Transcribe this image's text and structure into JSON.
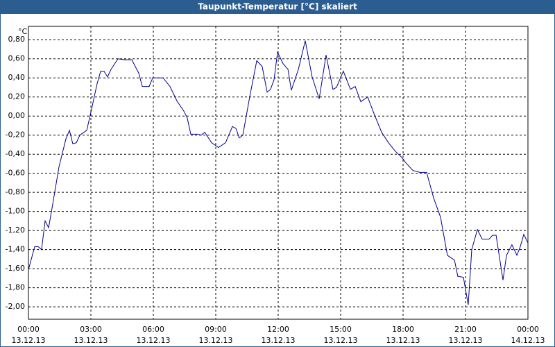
{
  "chart_data": {
    "type": "line",
    "title": "Taupunkt-Temperatur [°C] skaliert",
    "y_label": "°C",
    "xlim": [
      0,
      24
    ],
    "ylim": [
      -2.13,
      0.94
    ],
    "grid": true,
    "xticks": [
      {
        "value": 0,
        "label": [
          "00:00",
          "13.12.13"
        ]
      },
      {
        "value": 3,
        "label": [
          "03:00",
          "13.12.13"
        ]
      },
      {
        "value": 6,
        "label": [
          "06:00",
          "13.12.13"
        ]
      },
      {
        "value": 9,
        "label": [
          "09:00",
          "13.12.13"
        ]
      },
      {
        "value": 12,
        "label": [
          "12:00",
          "13.12.13"
        ]
      },
      {
        "value": 15,
        "label": [
          "15:00",
          "13.12.13"
        ]
      },
      {
        "value": 18,
        "label": [
          "18:00",
          "13.12.13"
        ]
      },
      {
        "value": 21,
        "label": [
          "21:00",
          "13.12.13"
        ]
      },
      {
        "value": 24,
        "label": [
          "00:00",
          "14.12.13"
        ]
      }
    ],
    "yticks": [
      {
        "value": 0.8,
        "label": "0,80"
      },
      {
        "value": 0.6,
        "label": "0,60"
      },
      {
        "value": 0.4,
        "label": "0,40"
      },
      {
        "value": 0.2,
        "label": "0,20"
      },
      {
        "value": 0,
        "label": "0,00"
      },
      {
        "value": -0.2,
        "label": "-0,20"
      },
      {
        "value": -0.4,
        "label": "-0,40"
      },
      {
        "value": -0.6,
        "label": "-0,60"
      },
      {
        "value": -0.8,
        "label": "-0,80"
      },
      {
        "value": -1.0,
        "label": "-1,00"
      },
      {
        "value": -1.2,
        "label": "-1,20"
      },
      {
        "value": -1.4,
        "label": "-1,40"
      },
      {
        "value": -1.6,
        "label": "-1,60"
      },
      {
        "value": -1.8,
        "label": "-1,80"
      },
      {
        "value": -2.0,
        "label": "-2,00"
      }
    ],
    "series": [
      {
        "color": "#00008b",
        "x": [
          0,
          0.3,
          0.47,
          0.63,
          0.8,
          0.97,
          1.13,
          1.47,
          1.8,
          1.97,
          2.13,
          2.3,
          2.47,
          2.8,
          2.97,
          3.3,
          3.47,
          3.63,
          3.8,
          3.97,
          4.3,
          4.63,
          4.97,
          5.13,
          5.3,
          5.47,
          5.8,
          5.97,
          6.47,
          6.8,
          7.13,
          7.47,
          7.63,
          7.8,
          8.13,
          8.3,
          8.47,
          8.8,
          9.13,
          9.47,
          9.8,
          9.97,
          10.13,
          10.3,
          10.63,
          10.97,
          11.23,
          11.47,
          11.63,
          11.8,
          11.97,
          12.23,
          12.47,
          12.63,
          12.97,
          13.3,
          13.63,
          13.97,
          14.3,
          14.63,
          14.8,
          15.13,
          15.47,
          15.7,
          15.97,
          16.3,
          16.63,
          16.97,
          17.3,
          17.63,
          17.97,
          18.13,
          18.47,
          18.8,
          19.13,
          19.47,
          19.8,
          20.13,
          20.47,
          20.63,
          20.9,
          21.13,
          21.3,
          21.57,
          21.8,
          22.13,
          22.3,
          22.47,
          22.8,
          22.97,
          23.23,
          23.47,
          23.63,
          23.8,
          24
        ],
        "values": [
          -1.61,
          -1.37,
          -1.37,
          -1.4,
          -1.1,
          -1.17,
          -0.97,
          -0.53,
          -0.24,
          -0.15,
          -0.29,
          -0.28,
          -0.2,
          -0.15,
          0.01,
          0.34,
          0.47,
          0.47,
          0.41,
          0.49,
          0.6,
          0.59,
          0.59,
          0.52,
          0.45,
          0.31,
          0.31,
          0.4,
          0.4,
          0.31,
          0.16,
          0.05,
          -0.02,
          -0.19,
          -0.19,
          -0.2,
          -0.17,
          -0.28,
          -0.33,
          -0.28,
          -0.11,
          -0.13,
          -0.23,
          -0.2,
          0.2,
          0.58,
          0.52,
          0.25,
          0.28,
          0.38,
          0.67,
          0.55,
          0.49,
          0.27,
          0.49,
          0.79,
          0.41,
          0.18,
          0.64,
          0.28,
          0.3,
          0.47,
          0.28,
          0.31,
          0.15,
          0.2,
          0.01,
          -0.17,
          -0.28,
          -0.37,
          -0.44,
          -0.49,
          -0.57,
          -0.59,
          -0.59,
          -0.86,
          -1.06,
          -1.46,
          -1.51,
          -1.68,
          -1.69,
          -1.98,
          -1.4,
          -1.19,
          -1.29,
          -1.29,
          -1.25,
          -1.25,
          -1.72,
          -1.46,
          -1.35,
          -1.46,
          -1.37,
          -1.24,
          -1.33
        ]
      }
    ]
  }
}
